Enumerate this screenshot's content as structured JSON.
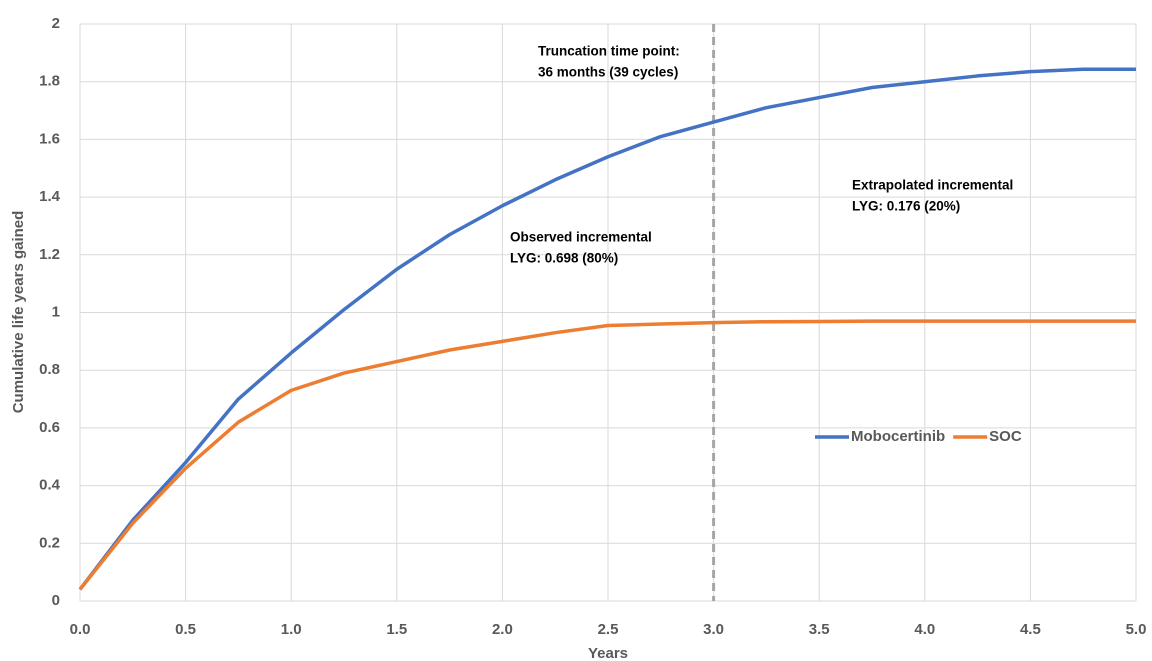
{
  "chart_data": {
    "type": "line",
    "x_label": "Years",
    "y_label": "Cumulative life years gained",
    "x": [
      0,
      0.25,
      0.5,
      0.75,
      1.0,
      1.25,
      1.5,
      1.75,
      2.0,
      2.25,
      2.5,
      2.75,
      3.0,
      3.25,
      3.5,
      3.75,
      4.0,
      4.25,
      4.5,
      4.75,
      5.0
    ],
    "series": [
      {
        "name": "Mobocertinib",
        "color": "#4472c4",
        "values": [
          0.04,
          0.28,
          0.48,
          0.7,
          0.86,
          1.01,
          1.15,
          1.27,
          1.37,
          1.46,
          1.54,
          1.61,
          1.66,
          1.71,
          1.745,
          1.78,
          1.8,
          1.82,
          1.835,
          1.843,
          1.843
        ]
      },
      {
        "name": "SOC",
        "color": "#ed7d31",
        "values": [
          0.04,
          0.27,
          0.46,
          0.62,
          0.73,
          0.79,
          0.83,
          0.87,
          0.9,
          0.93,
          0.955,
          0.96,
          0.965,
          0.968,
          0.969,
          0.97,
          0.97,
          0.97,
          0.97,
          0.97,
          0.97
        ]
      }
    ],
    "xlim": [
      0,
      5
    ],
    "xticks": [
      {
        "value": 0,
        "label": "0.0"
      },
      0.5,
      {
        "value": 1,
        "label": "1.0"
      },
      1.5,
      {
        "value": 2,
        "label": "2.0"
      },
      2.5,
      {
        "value": 3,
        "label": "3.0"
      },
      3.5,
      {
        "value": 4,
        "label": "4.0"
      },
      4.5,
      {
        "value": 5,
        "label": "5.0"
      }
    ],
    "ylim": [
      0,
      2
    ],
    "yticks": [
      0,
      0.2,
      0.4,
      0.6,
      0.8,
      1,
      1.2,
      1.4,
      1.6,
      1.8,
      2
    ],
    "grid": true,
    "reference_line_x": 3,
    "annotations": [
      {
        "lines": [
          "Truncation time point:",
          "36 months (39 cycles)"
        ]
      },
      {
        "lines": [
          "Observed incremental",
          "LYG: 0.698 (80%)"
        ]
      },
      {
        "lines": [
          "Extrapolated incremental",
          "LYG: 0.176 (20%)"
        ]
      }
    ]
  }
}
